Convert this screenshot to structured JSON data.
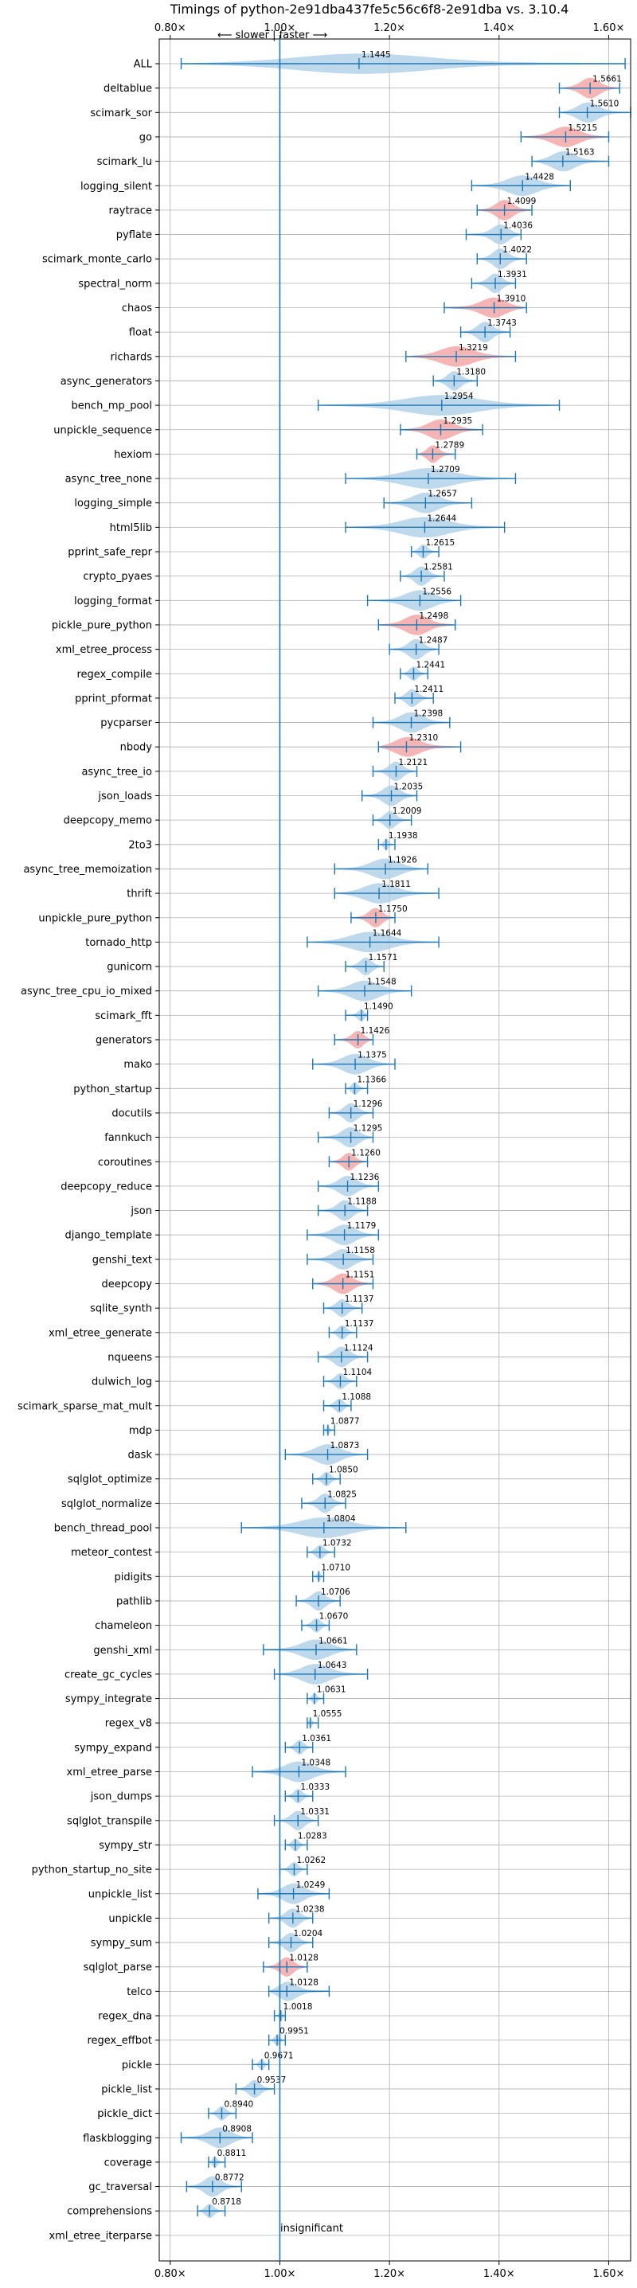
{
  "chart_data": {
    "type": "violin",
    "title": "Timings of python-2e91dba437fe5c56c6f8-2e91dba vs. 3.10.4",
    "direction_label": "⟵ slower | faster ⟶",
    "reference_label": "insignificant",
    "xlim": [
      0.78,
      1.64
    ],
    "xticks": [
      0.8,
      1.0,
      1.2,
      1.4,
      1.6
    ],
    "xtick_labels": [
      "0.80×",
      "1.00×",
      "1.20×",
      "1.40×",
      "1.60×"
    ],
    "colors": {
      "faster": "#a9cce6",
      "slower": "#f4a8a8",
      "whisker": "#1f77b4",
      "grid": "#b0b0b0"
    },
    "benchmarks": [
      {
        "name": "ALL",
        "mean": 1.1445,
        "min": 0.82,
        "max": 1.63,
        "slower": false
      },
      {
        "name": "deltablue",
        "mean": 1.5661,
        "min": 1.51,
        "max": 1.62,
        "slower": true
      },
      {
        "name": "scimark_sor",
        "mean": 1.561,
        "min": 1.51,
        "max": 1.64,
        "slower": false
      },
      {
        "name": "go",
        "mean": 1.5215,
        "min": 1.44,
        "max": 1.6,
        "slower": true
      },
      {
        "name": "scimark_lu",
        "mean": 1.5163,
        "min": 1.46,
        "max": 1.6,
        "slower": false
      },
      {
        "name": "logging_silent",
        "mean": 1.4428,
        "min": 1.35,
        "max": 1.53,
        "slower": false
      },
      {
        "name": "raytrace",
        "mean": 1.4099,
        "min": 1.36,
        "max": 1.46,
        "slower": true
      },
      {
        "name": "pyflate",
        "mean": 1.4036,
        "min": 1.34,
        "max": 1.44,
        "slower": false
      },
      {
        "name": "scimark_monte_carlo",
        "mean": 1.4022,
        "min": 1.36,
        "max": 1.45,
        "slower": false
      },
      {
        "name": "spectral_norm",
        "mean": 1.3931,
        "min": 1.35,
        "max": 1.43,
        "slower": false
      },
      {
        "name": "chaos",
        "mean": 1.391,
        "min": 1.3,
        "max": 1.45,
        "slower": true
      },
      {
        "name": "float",
        "mean": 1.3743,
        "min": 1.33,
        "max": 1.42,
        "slower": false
      },
      {
        "name": "richards",
        "mean": 1.3219,
        "min": 1.23,
        "max": 1.43,
        "slower": true
      },
      {
        "name": "async_generators",
        "mean": 1.318,
        "min": 1.28,
        "max": 1.36,
        "slower": false
      },
      {
        "name": "bench_mp_pool",
        "mean": 1.2954,
        "min": 1.07,
        "max": 1.51,
        "slower": false
      },
      {
        "name": "unpickle_sequence",
        "mean": 1.2935,
        "min": 1.22,
        "max": 1.37,
        "slower": true
      },
      {
        "name": "hexiom",
        "mean": 1.2789,
        "min": 1.25,
        "max": 1.32,
        "slower": true
      },
      {
        "name": "async_tree_none",
        "mean": 1.2709,
        "min": 1.12,
        "max": 1.43,
        "slower": false
      },
      {
        "name": "logging_simple",
        "mean": 1.2657,
        "min": 1.19,
        "max": 1.35,
        "slower": false
      },
      {
        "name": "html5lib",
        "mean": 1.2644,
        "min": 1.12,
        "max": 1.41,
        "slower": false
      },
      {
        "name": "pprint_safe_repr",
        "mean": 1.2615,
        "min": 1.24,
        "max": 1.29,
        "slower": false
      },
      {
        "name": "crypto_pyaes",
        "mean": 1.2581,
        "min": 1.22,
        "max": 1.3,
        "slower": false
      },
      {
        "name": "logging_format",
        "mean": 1.2556,
        "min": 1.16,
        "max": 1.33,
        "slower": false
      },
      {
        "name": "pickle_pure_python",
        "mean": 1.2498,
        "min": 1.18,
        "max": 1.32,
        "slower": true
      },
      {
        "name": "xml_etree_process",
        "mean": 1.2487,
        "min": 1.2,
        "max": 1.29,
        "slower": false
      },
      {
        "name": "regex_compile",
        "mean": 1.2441,
        "min": 1.22,
        "max": 1.27,
        "slower": false
      },
      {
        "name": "pprint_pformat",
        "mean": 1.2411,
        "min": 1.21,
        "max": 1.28,
        "slower": false
      },
      {
        "name": "pycparser",
        "mean": 1.2398,
        "min": 1.17,
        "max": 1.31,
        "slower": false
      },
      {
        "name": "nbody",
        "mean": 1.231,
        "min": 1.18,
        "max": 1.33,
        "slower": true
      },
      {
        "name": "async_tree_io",
        "mean": 1.2121,
        "min": 1.17,
        "max": 1.25,
        "slower": false
      },
      {
        "name": "json_loads",
        "mean": 1.2035,
        "min": 1.15,
        "max": 1.25,
        "slower": false
      },
      {
        "name": "deepcopy_memo",
        "mean": 1.2009,
        "min": 1.17,
        "max": 1.24,
        "slower": false
      },
      {
        "name": "2to3",
        "mean": 1.1938,
        "min": 1.18,
        "max": 1.21,
        "slower": false
      },
      {
        "name": "async_tree_memoization",
        "mean": 1.1926,
        "min": 1.1,
        "max": 1.27,
        "slower": false
      },
      {
        "name": "thrift",
        "mean": 1.1811,
        "min": 1.1,
        "max": 1.29,
        "slower": false
      },
      {
        "name": "unpickle_pure_python",
        "mean": 1.175,
        "min": 1.13,
        "max": 1.21,
        "slower": true
      },
      {
        "name": "tornado_http",
        "mean": 1.1644,
        "min": 1.05,
        "max": 1.29,
        "slower": false
      },
      {
        "name": "gunicorn",
        "mean": 1.1571,
        "min": 1.12,
        "max": 1.19,
        "slower": false
      },
      {
        "name": "async_tree_cpu_io_mixed",
        "mean": 1.1548,
        "min": 1.07,
        "max": 1.24,
        "slower": false
      },
      {
        "name": "scimark_fft",
        "mean": 1.149,
        "min": 1.12,
        "max": 1.16,
        "slower": false
      },
      {
        "name": "generators",
        "mean": 1.1426,
        "min": 1.1,
        "max": 1.17,
        "slower": true
      },
      {
        "name": "mako",
        "mean": 1.1375,
        "min": 1.06,
        "max": 1.21,
        "slower": false
      },
      {
        "name": "python_startup",
        "mean": 1.1366,
        "min": 1.12,
        "max": 1.16,
        "slower": false
      },
      {
        "name": "docutils",
        "mean": 1.1296,
        "min": 1.09,
        "max": 1.17,
        "slower": false
      },
      {
        "name": "fannkuch",
        "mean": 1.1295,
        "min": 1.07,
        "max": 1.17,
        "slower": false
      },
      {
        "name": "coroutines",
        "mean": 1.126,
        "min": 1.09,
        "max": 1.16,
        "slower": true
      },
      {
        "name": "deepcopy_reduce",
        "mean": 1.1236,
        "min": 1.07,
        "max": 1.18,
        "slower": false
      },
      {
        "name": "json",
        "mean": 1.1188,
        "min": 1.07,
        "max": 1.16,
        "slower": false
      },
      {
        "name": "django_template",
        "mean": 1.1179,
        "min": 1.05,
        "max": 1.18,
        "slower": false
      },
      {
        "name": "genshi_text",
        "mean": 1.1158,
        "min": 1.05,
        "max": 1.17,
        "slower": false
      },
      {
        "name": "deepcopy",
        "mean": 1.1151,
        "min": 1.06,
        "max": 1.17,
        "slower": true
      },
      {
        "name": "sqlite_synth",
        "mean": 1.1137,
        "min": 1.08,
        "max": 1.15,
        "slower": false
      },
      {
        "name": "xml_etree_generate",
        "mean": 1.1137,
        "min": 1.09,
        "max": 1.14,
        "slower": false
      },
      {
        "name": "nqueens",
        "mean": 1.1124,
        "min": 1.07,
        "max": 1.16,
        "slower": false
      },
      {
        "name": "dulwich_log",
        "mean": 1.1104,
        "min": 1.08,
        "max": 1.14,
        "slower": false
      },
      {
        "name": "scimark_sparse_mat_mult",
        "mean": 1.1088,
        "min": 1.08,
        "max": 1.13,
        "slower": false
      },
      {
        "name": "mdp",
        "mean": 1.0877,
        "min": 1.08,
        "max": 1.1,
        "slower": false
      },
      {
        "name": "dask",
        "mean": 1.0873,
        "min": 1.01,
        "max": 1.16,
        "slower": false
      },
      {
        "name": "sqlglot_optimize",
        "mean": 1.085,
        "min": 1.06,
        "max": 1.11,
        "slower": false
      },
      {
        "name": "sqlglot_normalize",
        "mean": 1.0825,
        "min": 1.04,
        "max": 1.12,
        "slower": false
      },
      {
        "name": "bench_thread_pool",
        "mean": 1.0804,
        "min": 0.93,
        "max": 1.23,
        "slower": false
      },
      {
        "name": "meteor_contest",
        "mean": 1.0732,
        "min": 1.05,
        "max": 1.1,
        "slower": false
      },
      {
        "name": "pidigits",
        "mean": 1.071,
        "min": 1.06,
        "max": 1.08,
        "slower": false
      },
      {
        "name": "pathlib",
        "mean": 1.0706,
        "min": 1.03,
        "max": 1.11,
        "slower": false
      },
      {
        "name": "chameleon",
        "mean": 1.067,
        "min": 1.04,
        "max": 1.09,
        "slower": false
      },
      {
        "name": "genshi_xml",
        "mean": 1.0661,
        "min": 0.97,
        "max": 1.14,
        "slower": false
      },
      {
        "name": "create_gc_cycles",
        "mean": 1.0643,
        "min": 0.99,
        "max": 1.16,
        "slower": false
      },
      {
        "name": "sympy_integrate",
        "mean": 1.0631,
        "min": 1.05,
        "max": 1.08,
        "slower": false
      },
      {
        "name": "regex_v8",
        "mean": 1.0555,
        "min": 1.05,
        "max": 1.07,
        "slower": false
      },
      {
        "name": "sympy_expand",
        "mean": 1.0361,
        "min": 1.01,
        "max": 1.06,
        "slower": false
      },
      {
        "name": "xml_etree_parse",
        "mean": 1.0348,
        "min": 0.95,
        "max": 1.12,
        "slower": false
      },
      {
        "name": "json_dumps",
        "mean": 1.0333,
        "min": 1.01,
        "max": 1.06,
        "slower": false
      },
      {
        "name": "sqlglot_transpile",
        "mean": 1.0331,
        "min": 0.99,
        "max": 1.07,
        "slower": false
      },
      {
        "name": "sympy_str",
        "mean": 1.0283,
        "min": 1.01,
        "max": 1.05,
        "slower": false
      },
      {
        "name": "python_startup_no_site",
        "mean": 1.0262,
        "min": 1.0,
        "max": 1.05,
        "slower": false
      },
      {
        "name": "unpickle_list",
        "mean": 1.0249,
        "min": 0.96,
        "max": 1.09,
        "slower": false
      },
      {
        "name": "unpickle",
        "mean": 1.0238,
        "min": 0.98,
        "max": 1.06,
        "slower": false
      },
      {
        "name": "sympy_sum",
        "mean": 1.0204,
        "min": 0.98,
        "max": 1.06,
        "slower": false
      },
      {
        "name": "sqlglot_parse",
        "mean": 1.0128,
        "min": 0.97,
        "max": 1.05,
        "slower": true
      },
      {
        "name": "telco",
        "mean": 1.0128,
        "min": 0.98,
        "max": 1.09,
        "slower": false
      },
      {
        "name": "regex_dna",
        "mean": 1.0018,
        "min": 0.99,
        "max": 1.01,
        "slower": false
      },
      {
        "name": "regex_effbot",
        "mean": 0.9951,
        "min": 0.98,
        "max": 1.01,
        "slower": false
      },
      {
        "name": "pickle",
        "mean": 0.9671,
        "min": 0.95,
        "max": 0.98,
        "slower": false
      },
      {
        "name": "pickle_list",
        "mean": 0.9537,
        "min": 0.92,
        "max": 0.99,
        "slower": false
      },
      {
        "name": "pickle_dict",
        "mean": 0.894,
        "min": 0.87,
        "max": 0.92,
        "slower": false
      },
      {
        "name": "flaskblogging",
        "mean": 0.8908,
        "min": 0.82,
        "max": 0.95,
        "slower": false
      },
      {
        "name": "coverage",
        "mean": 0.8811,
        "min": 0.87,
        "max": 0.9,
        "slower": false
      },
      {
        "name": "gc_traversal",
        "mean": 0.8772,
        "min": 0.83,
        "max": 0.93,
        "slower": false
      },
      {
        "name": "comprehensions",
        "mean": 0.8718,
        "min": 0.85,
        "max": 0.9,
        "slower": false
      },
      {
        "name": "xml_etree_iterparse",
        "mean": null,
        "min": null,
        "max": null,
        "slower": false
      }
    ]
  }
}
